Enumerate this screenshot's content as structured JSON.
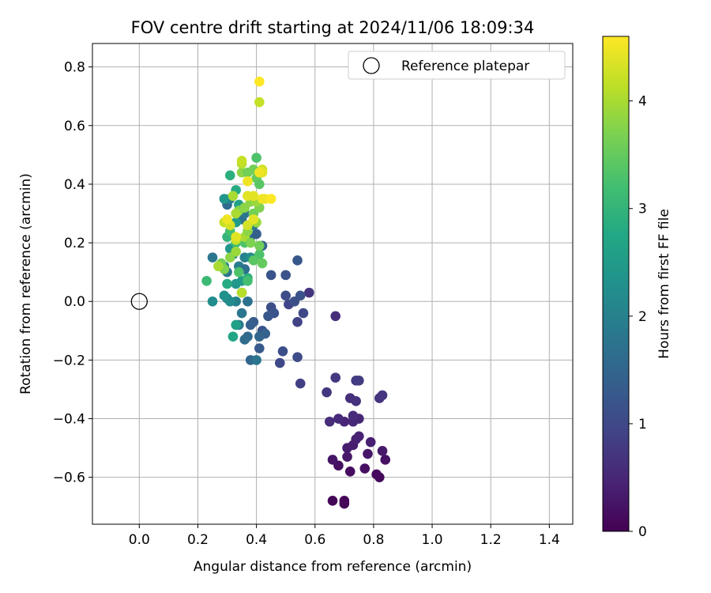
{
  "chart_data": {
    "type": "scatter",
    "title": "FOV centre drift starting at 2024/11/06 18:09:34",
    "xlabel": "Angular distance from reference (arcmin)",
    "ylabel": "Rotation from reference (arcmin)",
    "xlim": [
      -0.16,
      1.48
    ],
    "ylim": [
      -0.76,
      0.88
    ],
    "xticks": [
      0.0,
      0.2,
      0.4,
      0.6,
      0.8,
      1.0,
      1.2,
      1.4
    ],
    "xtick_labels": [
      "0.0",
      "0.2",
      "0.4",
      "0.6",
      "0.8",
      "1.0",
      "1.2",
      "1.4"
    ],
    "yticks": [
      -0.6,
      -0.4,
      -0.2,
      0.0,
      0.2,
      0.4,
      0.6,
      0.8
    ],
    "ytick_labels": [
      "−0.6",
      "−0.4",
      "−0.2",
      "0.0",
      "0.2",
      "0.4",
      "0.6",
      "0.8"
    ],
    "grid": true,
    "legend": {
      "position": "top-right",
      "entries": [
        "Reference platepar"
      ]
    },
    "reference_point": {
      "x": 0.0,
      "y": 0.0,
      "label": "Reference platepar"
    },
    "colorbar": {
      "label": "Hours from first FF file",
      "colormap": "viridis",
      "min": 0,
      "max": 4.6,
      "ticks": [
        0,
        1,
        2,
        3,
        4
      ],
      "tick_labels": [
        "0",
        "1",
        "2",
        "3",
        "4"
      ]
    },
    "points": [
      {
        "x": 0.66,
        "y": -0.68,
        "t": 0.05
      },
      {
        "x": 0.7,
        "y": -0.68,
        "t": 0.06
      },
      {
        "x": 0.7,
        "y": -0.69,
        "t": 0.08
      },
      {
        "x": 0.82,
        "y": -0.6,
        "t": 0.1
      },
      {
        "x": 0.81,
        "y": -0.59,
        "t": 0.12
      },
      {
        "x": 0.72,
        "y": -0.58,
        "t": 0.15
      },
      {
        "x": 0.77,
        "y": -0.57,
        "t": 0.18
      },
      {
        "x": 0.68,
        "y": -0.56,
        "t": 0.2
      },
      {
        "x": 0.84,
        "y": -0.54,
        "t": 0.22
      },
      {
        "x": 0.66,
        "y": -0.54,
        "t": 0.25
      },
      {
        "x": 0.78,
        "y": -0.52,
        "t": 0.28
      },
      {
        "x": 0.71,
        "y": -0.53,
        "t": 0.3
      },
      {
        "x": 0.83,
        "y": -0.51,
        "t": 0.32
      },
      {
        "x": 0.71,
        "y": -0.5,
        "t": 0.35
      },
      {
        "x": 0.73,
        "y": -0.49,
        "t": 0.38
      },
      {
        "x": 0.79,
        "y": -0.48,
        "t": 0.4
      },
      {
        "x": 0.74,
        "y": -0.47,
        "t": 0.42
      },
      {
        "x": 0.75,
        "y": -0.46,
        "t": 0.45
      },
      {
        "x": 0.7,
        "y": -0.41,
        "t": 0.48
      },
      {
        "x": 0.73,
        "y": -0.41,
        "t": 0.5
      },
      {
        "x": 0.75,
        "y": -0.4,
        "t": 0.52
      },
      {
        "x": 0.68,
        "y": -0.4,
        "t": 0.55
      },
      {
        "x": 0.73,
        "y": -0.39,
        "t": 0.58
      },
      {
        "x": 0.65,
        "y": -0.41,
        "t": 0.6
      },
      {
        "x": 0.72,
        "y": -0.33,
        "t": 0.62
      },
      {
        "x": 0.74,
        "y": -0.34,
        "t": 0.65
      },
      {
        "x": 0.82,
        "y": -0.33,
        "t": 0.68
      },
      {
        "x": 0.83,
        "y": -0.32,
        "t": 0.7
      },
      {
        "x": 0.64,
        "y": -0.31,
        "t": 0.72
      },
      {
        "x": 0.67,
        "y": -0.26,
        "t": 0.75
      },
      {
        "x": 0.74,
        "y": -0.27,
        "t": 0.78
      },
      {
        "x": 0.75,
        "y": -0.27,
        "t": 0.8
      },
      {
        "x": 0.55,
        "y": -0.28,
        "t": 0.85
      },
      {
        "x": 0.67,
        "y": -0.05,
        "t": 0.6
      },
      {
        "x": 0.58,
        "y": 0.03,
        "t": 0.7
      },
      {
        "x": 0.54,
        "y": -0.07,
        "t": 0.9
      },
      {
        "x": 0.56,
        "y": -0.04,
        "t": 1.0
      },
      {
        "x": 0.51,
        "y": -0.01,
        "t": 0.95
      },
      {
        "x": 0.5,
        "y": 0.02,
        "t": 1.05
      },
      {
        "x": 0.53,
        "y": 0.0,
        "t": 1.1
      },
      {
        "x": 0.55,
        "y": 0.02,
        "t": 1.15
      },
      {
        "x": 0.45,
        "y": -0.02,
        "t": 1.1
      },
      {
        "x": 0.46,
        "y": -0.04,
        "t": 1.2
      },
      {
        "x": 0.44,
        "y": -0.05,
        "t": 1.25
      },
      {
        "x": 0.48,
        "y": -0.21,
        "t": 1.0
      },
      {
        "x": 0.54,
        "y": -0.19,
        "t": 1.05
      },
      {
        "x": 0.49,
        "y": -0.17,
        "t": 1.1
      },
      {
        "x": 0.42,
        "y": -0.1,
        "t": 1.2
      },
      {
        "x": 0.41,
        "y": -0.16,
        "t": 1.3
      },
      {
        "x": 0.39,
        "y": -0.07,
        "t": 1.35
      },
      {
        "x": 0.38,
        "y": -0.08,
        "t": 1.4
      },
      {
        "x": 0.43,
        "y": -0.11,
        "t": 1.45
      },
      {
        "x": 0.41,
        "y": -0.12,
        "t": 1.5
      },
      {
        "x": 0.37,
        "y": -0.12,
        "t": 1.55
      },
      {
        "x": 0.38,
        "y": -0.2,
        "t": 1.5
      },
      {
        "x": 0.4,
        "y": -0.2,
        "t": 1.8
      },
      {
        "x": 0.36,
        "y": -0.13,
        "t": 1.6
      },
      {
        "x": 0.45,
        "y": 0.09,
        "t": 1.2
      },
      {
        "x": 0.5,
        "y": 0.09,
        "t": 1.15
      },
      {
        "x": 0.54,
        "y": 0.14,
        "t": 1.25
      },
      {
        "x": 0.37,
        "y": 0.0,
        "t": 1.7
      },
      {
        "x": 0.35,
        "y": -0.04,
        "t": 1.8
      },
      {
        "x": 0.34,
        "y": -0.08,
        "t": 1.9
      },
      {
        "x": 0.35,
        "y": 0.03,
        "t": 1.85
      },
      {
        "x": 0.33,
        "y": 0.0,
        "t": 2.0
      },
      {
        "x": 0.3,
        "y": 0.01,
        "t": 2.1
      },
      {
        "x": 0.31,
        "y": 0.0,
        "t": 2.2
      },
      {
        "x": 0.29,
        "y": 0.02,
        "t": 2.3
      },
      {
        "x": 0.33,
        "y": -0.08,
        "t": 2.6
      },
      {
        "x": 0.32,
        "y": -0.12,
        "t": 2.7
      },
      {
        "x": 0.25,
        "y": 0.0,
        "t": 2.2
      },
      {
        "x": 0.33,
        "y": 0.06,
        "t": 2.4
      },
      {
        "x": 0.3,
        "y": 0.06,
        "t": 2.8
      },
      {
        "x": 0.35,
        "y": 0.07,
        "t": 2.5
      },
      {
        "x": 0.37,
        "y": 0.08,
        "t": 2.9
      },
      {
        "x": 0.23,
        "y": 0.07,
        "t": 3.1
      },
      {
        "x": 0.34,
        "y": 0.12,
        "t": 1.9
      },
      {
        "x": 0.36,
        "y": 0.11,
        "t": 1.7
      },
      {
        "x": 0.3,
        "y": 0.1,
        "t": 1.8
      },
      {
        "x": 0.29,
        "y": 0.12,
        "t": 2.0
      },
      {
        "x": 0.25,
        "y": 0.15,
        "t": 1.8
      },
      {
        "x": 0.36,
        "y": 0.15,
        "t": 2.0
      },
      {
        "x": 0.32,
        "y": 0.16,
        "t": 2.1
      },
      {
        "x": 0.31,
        "y": 0.18,
        "t": 2.4
      },
      {
        "x": 0.38,
        "y": 0.15,
        "t": 2.2
      },
      {
        "x": 0.38,
        "y": 0.22,
        "t": 1.6
      },
      {
        "x": 0.4,
        "y": 0.23,
        "t": 1.4
      },
      {
        "x": 0.42,
        "y": 0.19,
        "t": 1.5
      },
      {
        "x": 0.39,
        "y": 0.26,
        "t": 1.9
      },
      {
        "x": 0.35,
        "y": 0.28,
        "t": 1.7
      },
      {
        "x": 0.36,
        "y": 0.3,
        "t": 1.8
      },
      {
        "x": 0.33,
        "y": 0.27,
        "t": 2.5
      },
      {
        "x": 0.3,
        "y": 0.33,
        "t": 1.6
      },
      {
        "x": 0.31,
        "y": 0.35,
        "t": 2.0
      },
      {
        "x": 0.29,
        "y": 0.35,
        "t": 2.4
      },
      {
        "x": 0.34,
        "y": 0.33,
        "t": 2.6
      },
      {
        "x": 0.33,
        "y": 0.38,
        "t": 2.8
      },
      {
        "x": 0.31,
        "y": 0.43,
        "t": 2.9
      },
      {
        "x": 0.37,
        "y": 0.36,
        "t": 3.2
      },
      {
        "x": 0.3,
        "y": 0.22,
        "t": 3.0
      },
      {
        "x": 0.33,
        "y": 0.2,
        "t": 3.1
      },
      {
        "x": 0.31,
        "y": 0.24,
        "t": 3.2
      },
      {
        "x": 0.36,
        "y": 0.2,
        "t": 3.3
      },
      {
        "x": 0.41,
        "y": 0.16,
        "t": 3.3
      },
      {
        "x": 0.39,
        "y": 0.14,
        "t": 3.4
      },
      {
        "x": 0.42,
        "y": 0.13,
        "t": 3.5
      },
      {
        "x": 0.37,
        "y": 0.07,
        "t": 3.2
      },
      {
        "x": 0.34,
        "y": 0.1,
        "t": 3.3
      },
      {
        "x": 0.28,
        "y": 0.13,
        "t": 3.6
      },
      {
        "x": 0.29,
        "y": 0.11,
        "t": 3.7
      },
      {
        "x": 0.31,
        "y": 0.15,
        "t": 3.8
      },
      {
        "x": 0.33,
        "y": 0.17,
        "t": 3.9
      },
      {
        "x": 0.27,
        "y": 0.12,
        "t": 4.0
      },
      {
        "x": 0.35,
        "y": 0.03,
        "t": 4.1
      },
      {
        "x": 0.33,
        "y": 0.21,
        "t": 4.2
      },
      {
        "x": 0.36,
        "y": 0.22,
        "t": 4.0
      },
      {
        "x": 0.38,
        "y": 0.2,
        "t": 3.7
      },
      {
        "x": 0.41,
        "y": 0.19,
        "t": 3.6
      },
      {
        "x": 0.37,
        "y": 0.24,
        "t": 3.8
      },
      {
        "x": 0.4,
        "y": 0.27,
        "t": 3.9
      },
      {
        "x": 0.39,
        "y": 0.3,
        "t": 3.6
      },
      {
        "x": 0.34,
        "y": 0.31,
        "t": 3.7
      },
      {
        "x": 0.36,
        "y": 0.32,
        "t": 3.8
      },
      {
        "x": 0.33,
        "y": 0.3,
        "t": 4.0
      },
      {
        "x": 0.38,
        "y": 0.34,
        "t": 3.8
      },
      {
        "x": 0.41,
        "y": 0.32,
        "t": 3.7
      },
      {
        "x": 0.4,
        "y": 0.34,
        "t": 3.9
      },
      {
        "x": 0.32,
        "y": 0.36,
        "t": 4.0
      },
      {
        "x": 0.29,
        "y": 0.27,
        "t": 4.2
      },
      {
        "x": 0.31,
        "y": 0.26,
        "t": 4.3
      },
      {
        "x": 0.33,
        "y": 0.22,
        "t": 4.4
      },
      {
        "x": 0.37,
        "y": 0.26,
        "t": 4.3
      },
      {
        "x": 0.39,
        "y": 0.28,
        "t": 4.4
      },
      {
        "x": 0.3,
        "y": 0.28,
        "t": 4.5
      },
      {
        "x": 0.35,
        "y": 0.44,
        "t": 3.8
      },
      {
        "x": 0.37,
        "y": 0.44,
        "t": 3.6
      },
      {
        "x": 0.4,
        "y": 0.42,
        "t": 3.5
      },
      {
        "x": 0.41,
        "y": 0.4,
        "t": 3.4
      },
      {
        "x": 0.39,
        "y": 0.45,
        "t": 3.6
      },
      {
        "x": 0.4,
        "y": 0.49,
        "t": 3.3
      },
      {
        "x": 0.35,
        "y": 0.47,
        "t": 4.1
      },
      {
        "x": 0.35,
        "y": 0.48,
        "t": 4.2
      },
      {
        "x": 0.42,
        "y": 0.45,
        "t": 4.3
      },
      {
        "x": 0.42,
        "y": 0.44,
        "t": 4.4
      },
      {
        "x": 0.37,
        "y": 0.41,
        "t": 4.5
      },
      {
        "x": 0.41,
        "y": 0.44,
        "t": 4.5
      },
      {
        "x": 0.37,
        "y": 0.36,
        "t": 4.4
      },
      {
        "x": 0.39,
        "y": 0.36,
        "t": 4.4
      },
      {
        "x": 0.42,
        "y": 0.35,
        "t": 4.5
      },
      {
        "x": 0.43,
        "y": 0.35,
        "t": 4.5
      },
      {
        "x": 0.45,
        "y": 0.35,
        "t": 4.6
      },
      {
        "x": 0.41,
        "y": 0.68,
        "t": 4.2
      },
      {
        "x": 0.41,
        "y": 0.75,
        "t": 4.6
      }
    ]
  }
}
